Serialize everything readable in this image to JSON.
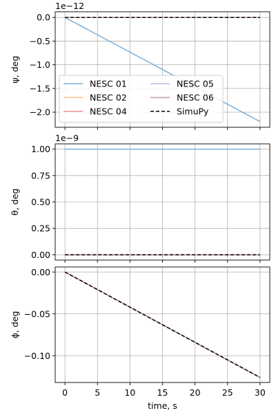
{
  "chart_data": {
    "type": "line",
    "legend_placement": "lower-left",
    "legend_columns": 2,
    "xlabel": "time, s",
    "x_ticks": [
      0,
      5,
      10,
      15,
      20,
      25,
      30
    ],
    "x_tick_labels": [
      "0",
      "5",
      "10",
      "15",
      "20",
      "25",
      "30"
    ],
    "xlim": [
      -1.5,
      31.5
    ],
    "grid": true,
    "legend": [
      {
        "name": "NESC 01",
        "color": "#7fb0d5",
        "dash": "solid"
      },
      {
        "name": "NESC 02",
        "color": "#ffbe86",
        "dash": "solid"
      },
      {
        "name": "NESC 04",
        "color": "#ea9293",
        "dash": "solid"
      },
      {
        "name": "NESC 05",
        "color": "#c9b3db",
        "dash": "solid"
      },
      {
        "name": "NESC 06",
        "color": "#c49e98",
        "dash": "solid"
      },
      {
        "name": "SimuPy",
        "color": "#000000",
        "dash": "dashed"
      }
    ],
    "panels": [
      {
        "ylabel": "ψ, deg",
        "offset_text": "1e−12",
        "ylim": [
          -2.32,
          0.12
        ],
        "y_ticks": [
          0.0,
          -0.5,
          -1.0,
          -1.5,
          -2.0
        ],
        "y_tick_labels": [
          "0.0",
          "−0.5",
          "−1.0",
          "−1.5",
          "−2.0"
        ],
        "show_legend": true,
        "series": [
          {
            "name": "NESC 01",
            "x": [
              0,
              30
            ],
            "y": [
              0.0,
              -2.2
            ]
          },
          {
            "name": "NESC 02",
            "x": [
              0,
              30
            ],
            "y": [
              0.0,
              0.0
            ]
          },
          {
            "name": "NESC 04",
            "x": [
              0,
              30
            ],
            "y": [
              0.0,
              0.0
            ]
          },
          {
            "name": "NESC 05",
            "x": [
              0,
              30
            ],
            "y": [
              0.0,
              0.0
            ]
          },
          {
            "name": "NESC 06",
            "x": [
              0,
              30
            ],
            "y": [
              0.0,
              0.0
            ]
          },
          {
            "name": "SimuPy",
            "x": [
              0,
              30
            ],
            "y": [
              0.0,
              0.0
            ]
          }
        ]
      },
      {
        "ylabel": "θ, deg",
        "offset_text": "1e−9",
        "ylim": [
          -0.05,
          1.05
        ],
        "y_ticks": [
          0.0,
          0.25,
          0.5,
          0.75,
          1.0
        ],
        "y_tick_labels": [
          "0.00",
          "0.25",
          "0.50",
          "0.75",
          "1.00"
        ],
        "show_legend": false,
        "series": [
          {
            "name": "NESC 01",
            "x": [
              0,
              30
            ],
            "y": [
              1.0,
              1.0
            ]
          },
          {
            "name": "NESC 02",
            "x": [
              0,
              30
            ],
            "y": [
              0.0,
              0.0
            ]
          },
          {
            "name": "NESC 04",
            "x": [
              0,
              30
            ],
            "y": [
              0.0,
              0.0
            ]
          },
          {
            "name": "NESC 05",
            "x": [
              0,
              30
            ],
            "y": [
              0.0,
              0.0
            ]
          },
          {
            "name": "NESC 06",
            "x": [
              0,
              30
            ],
            "y": [
              0.0,
              0.0
            ]
          },
          {
            "name": "SimuPy",
            "x": [
              0,
              30
            ],
            "y": [
              0.0,
              0.0
            ]
          }
        ]
      },
      {
        "ylabel": "ϕ, deg",
        "offset_text": "",
        "ylim": [
          -0.132,
          0.006
        ],
        "y_ticks": [
          0.0,
          -0.05,
          -0.1
        ],
        "y_tick_labels": [
          "0.00",
          "−0.05",
          "−0.10"
        ],
        "show_legend": false,
        "series": [
          {
            "name": "NESC 01",
            "x": [
              0,
              30
            ],
            "y": [
              0.0,
              -0.126
            ]
          },
          {
            "name": "NESC 02",
            "x": [
              0,
              30
            ],
            "y": [
              0.0,
              -0.126
            ]
          },
          {
            "name": "NESC 04",
            "x": [
              0,
              30
            ],
            "y": [
              0.0,
              -0.126
            ]
          },
          {
            "name": "NESC 05",
            "x": [
              0,
              30
            ],
            "y": [
              0.0,
              -0.126
            ]
          },
          {
            "name": "NESC 06",
            "x": [
              0,
              30
            ],
            "y": [
              0.0,
              -0.126
            ]
          },
          {
            "name": "SimuPy",
            "x": [
              0,
              30
            ],
            "y": [
              0.0,
              -0.126
            ]
          }
        ]
      }
    ]
  }
}
